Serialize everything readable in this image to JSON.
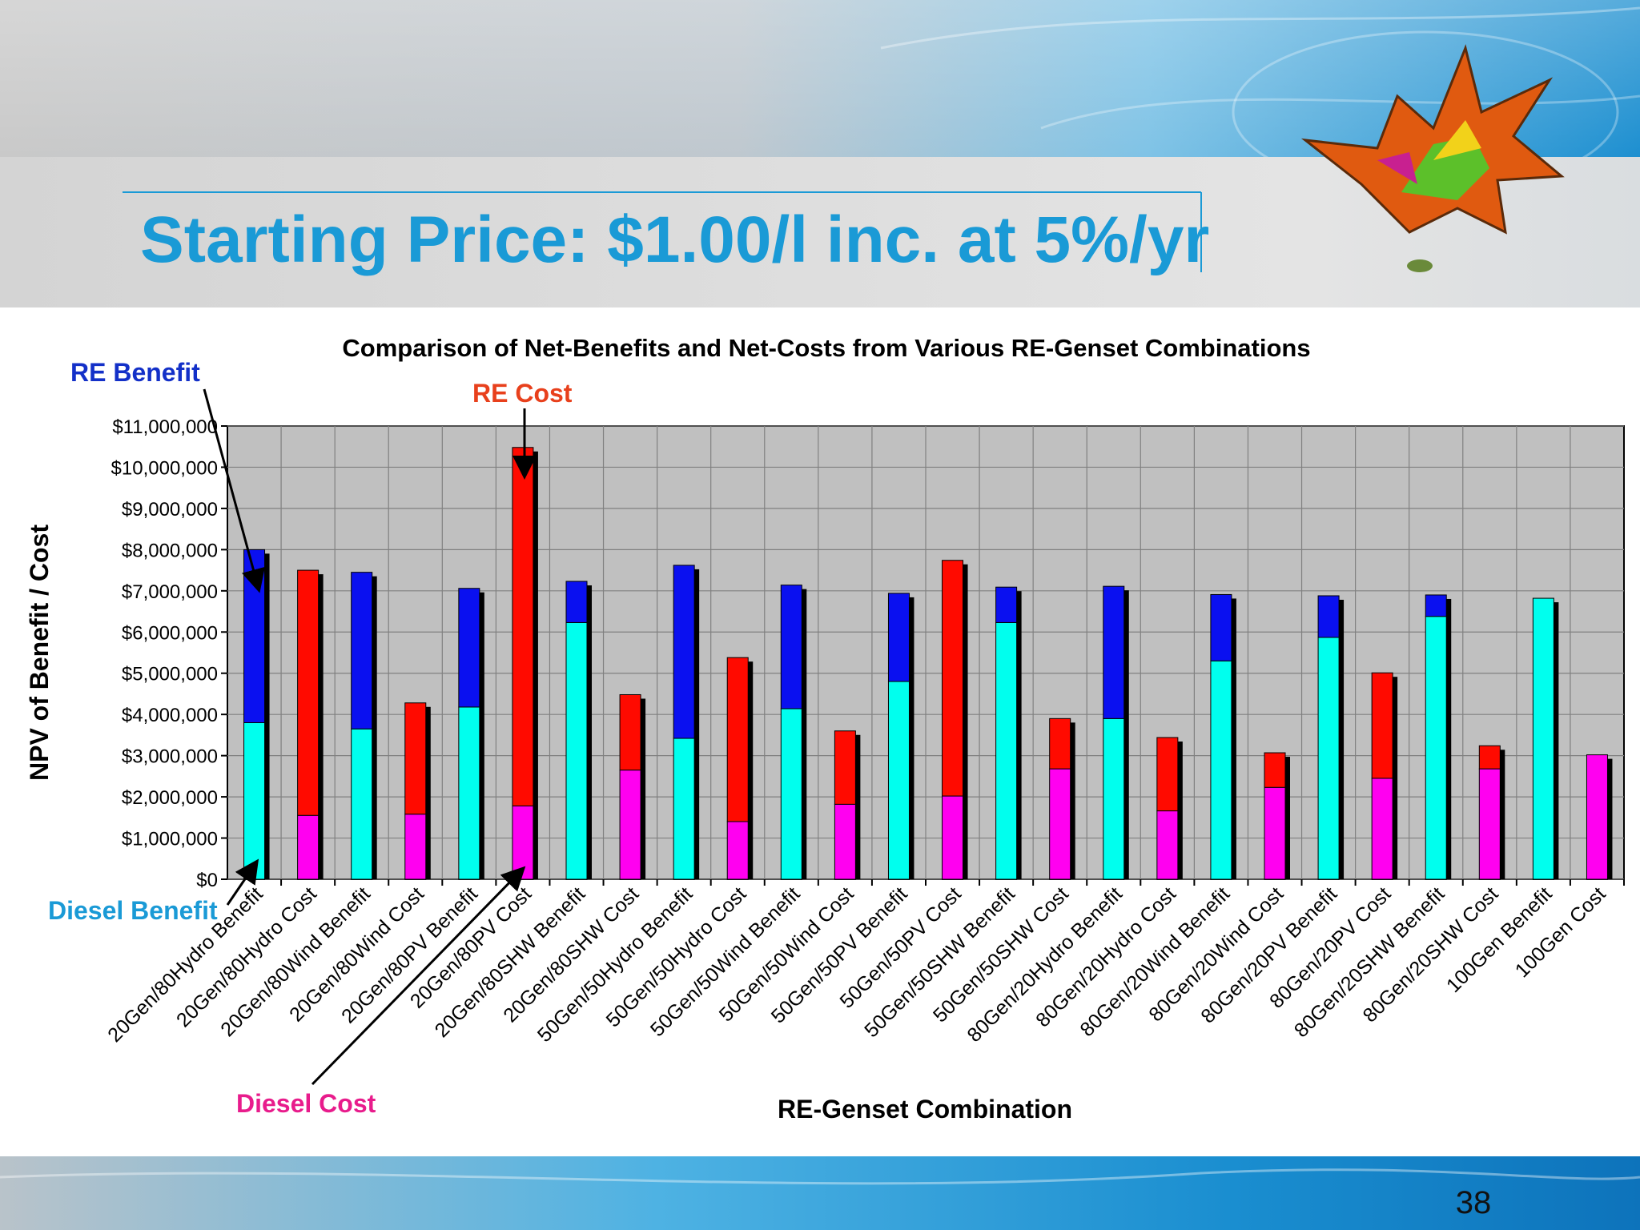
{
  "slide": {
    "title": "Starting Price: $1.00/l inc. at 5%/yr",
    "page_number": "38"
  },
  "colors": {
    "re_benefit": "#0a10f0",
    "re_cost": "#ff0a00",
    "diesel_benefit": "#00ffee",
    "diesel_cost": "#ff00f0",
    "plot_bg": "#c0c0c0",
    "title_blue": "#1a9ad6"
  },
  "annotations": {
    "re_benefit": "RE Benefit",
    "re_cost": "RE Cost",
    "diesel_benefit": "Diesel Benefit",
    "diesel_cost": "Diesel Cost"
  },
  "chart_data": {
    "type": "bar",
    "stacked": true,
    "title": "Comparison of Net-Benefits and Net-Costs from Various RE-Genset Combinations",
    "xlabel": "RE-Genset Combination",
    "ylabel": "NPV of Benefit / Cost",
    "ylim": [
      0,
      11000000
    ],
    "yticks": [
      "$0",
      "$1,000,000",
      "$2,000,000",
      "$3,000,000",
      "$4,000,000",
      "$5,000,000",
      "$6,000,000",
      "$7,000,000",
      "$8,000,000",
      "$9,000,000",
      "$10,000,000",
      "$11,000,000"
    ],
    "grid": true,
    "categories": [
      "20Gen/80Hydro Benefit",
      "20Gen/80Hydro Cost",
      "20Gen/80Wind Benefit",
      "20Gen/80Wind Cost",
      "20Gen/80PV Benefit",
      "20Gen/80PV Cost",
      "20Gen/80SHW Benefit",
      "20Gen/80SHW Cost",
      "50Gen/50Hydro Benefit",
      "50Gen/50Hydro Cost",
      "50Gen/50Wind Benefit",
      "50Gen/50Wind Cost",
      "50Gen/50PV Benefit",
      "50Gen/50PV Cost",
      "50Gen/50SHW Benefit",
      "50Gen/50SHW Cost",
      "80Gen/20Hydro Benefit",
      "80Gen/20Hydro Cost",
      "80Gen/20Wind Benefit",
      "80Gen/20Wind Cost",
      "80Gen/20PV Benefit",
      "80Gen/20PV Cost",
      "80Gen/20SHW Benefit",
      "80Gen/20SHW Cost",
      "100Gen Benefit",
      "100Gen Cost"
    ],
    "kinds": [
      "benefit",
      "cost",
      "benefit",
      "cost",
      "benefit",
      "cost",
      "benefit",
      "cost",
      "benefit",
      "cost",
      "benefit",
      "cost",
      "benefit",
      "cost",
      "benefit",
      "cost",
      "benefit",
      "cost",
      "benefit",
      "cost",
      "benefit",
      "cost",
      "benefit",
      "cost",
      "benefit",
      "cost"
    ],
    "series": [
      {
        "name": "Diesel",
        "values": [
          3800000,
          1550000,
          3650000,
          1580000,
          4180000,
          1780000,
          6230000,
          2650000,
          3420000,
          1400000,
          4140000,
          1820000,
          4800000,
          2020000,
          6230000,
          2680000,
          3900000,
          1660000,
          5300000,
          2230000,
          5870000,
          2450000,
          6380000,
          2680000,
          6820000,
          3020000
        ]
      },
      {
        "name": "RE",
        "values": [
          4200000,
          5950000,
          3800000,
          2700000,
          2880000,
          8700000,
          1000000,
          1830000,
          4200000,
          3980000,
          3000000,
          1780000,
          2140000,
          5720000,
          860000,
          1220000,
          3210000,
          1780000,
          1610000,
          840000,
          1010000,
          2560000,
          520000,
          560000,
          0,
          0
        ]
      }
    ]
  }
}
